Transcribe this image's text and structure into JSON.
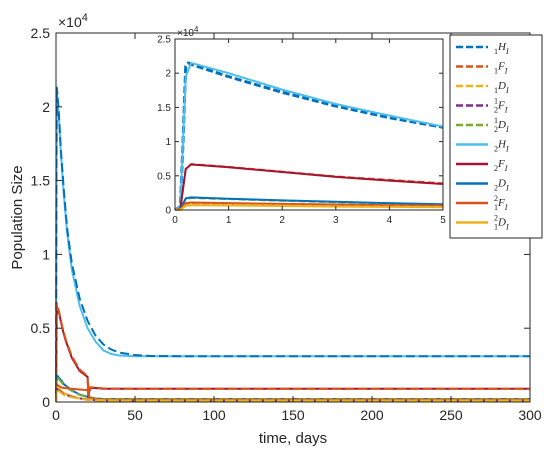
{
  "chart_data": [
    {
      "id": "main",
      "type": "line",
      "xlabel": "time, days",
      "ylabel": "Population Size",
      "y_exponent_label": "×10",
      "y_exponent_power": "4",
      "xlim": [
        0,
        300
      ],
      "ylim": [
        0,
        25000
      ],
      "xticks": [
        0,
        50,
        100,
        150,
        200,
        250,
        300
      ],
      "xtick_labels": [
        "0",
        "50",
        "100",
        "150",
        "200",
        "250",
        "300"
      ],
      "yticks": [
        0,
        5000,
        10000,
        15000,
        20000,
        25000
      ],
      "ytick_labels": [
        "0",
        "0.5",
        "1",
        "1.5",
        "2",
        "2.5"
      ],
      "grid": false,
      "series": [
        {
          "color": "#4DBEEE",
          "dash": false,
          "width": 2,
          "x": [
            0,
            0.3,
            0.5,
            1,
            2,
            3,
            5,
            7,
            10,
            15,
            20,
            25,
            30,
            35,
            40,
            50,
            60,
            80,
            100,
            150,
            200,
            250,
            300
          ],
          "y": [
            0,
            15000,
            21000,
            20500,
            19000,
            17000,
            14000,
            11500,
            9000,
            6500,
            5000,
            4100,
            3500,
            3250,
            3150,
            3100,
            3100,
            3100,
            3100,
            3100,
            3100,
            3100,
            3100
          ]
        },
        {
          "color": "#0072BD",
          "dash": true,
          "width": 2,
          "x": [
            0,
            0.3,
            0.5,
            1,
            2,
            3,
            5,
            7,
            10,
            15,
            20,
            25,
            30,
            35,
            40,
            50,
            60,
            80,
            100,
            150,
            200,
            250,
            300
          ],
          "y": [
            0,
            15500,
            21300,
            20800,
            19200,
            17200,
            14300,
            11800,
            9400,
            7000,
            5500,
            4500,
            3900,
            3550,
            3350,
            3180,
            3120,
            3100,
            3100,
            3100,
            3100,
            3100,
            3100
          ]
        },
        {
          "color": "#A2142F",
          "dash": false,
          "width": 2,
          "x": [
            0,
            0.5,
            1,
            2,
            4,
            6,
            10,
            15,
            20,
            20.5,
            21,
            22,
            25,
            30,
            50,
            100,
            150,
            200,
            250,
            300
          ],
          "y": [
            0,
            6500,
            6300,
            6000,
            5000,
            4200,
            3000,
            2100,
            1700,
            200,
            700,
            950,
            950,
            900,
            900,
            900,
            900,
            900,
            900,
            900
          ]
        },
        {
          "color": "#D95319",
          "dash": true,
          "width": 2,
          "x": [
            0,
            0.5,
            1,
            2,
            4,
            6,
            10,
            15,
            20,
            20.5,
            21,
            22,
            25,
            30,
            50,
            100,
            150,
            200,
            250,
            300
          ],
          "y": [
            0,
            6700,
            6500,
            6100,
            5100,
            4300,
            3100,
            2200,
            1750,
            250,
            750,
            1000,
            980,
            920,
            900,
            900,
            900,
            900,
            900,
            900
          ]
        },
        {
          "color": "#0072BD",
          "dash": false,
          "width": 2,
          "x": [
            0,
            0.5,
            1,
            3,
            5,
            10,
            15,
            20,
            25,
            30,
            50,
            100,
            150,
            200,
            250,
            300
          ],
          "y": [
            0,
            1800,
            1750,
            1500,
            1200,
            800,
            500,
            350,
            250,
            200,
            200,
            200,
            200,
            200,
            200,
            200
          ]
        },
        {
          "color": "#77AC30",
          "dash": true,
          "width": 2,
          "x": [
            0,
            0.5,
            1,
            3,
            5,
            10,
            15,
            20,
            25,
            30,
            50,
            100,
            150,
            200,
            250,
            300
          ],
          "y": [
            0,
            1700,
            1650,
            1400,
            1100,
            750,
            480,
            330,
            240,
            200,
            200,
            200,
            200,
            200,
            200,
            200
          ]
        },
        {
          "color": "#D95319",
          "dash": false,
          "width": 2,
          "x": [
            0,
            0.5,
            1,
            3,
            5,
            10,
            15,
            20,
            20.5,
            21,
            25,
            30,
            50,
            100,
            150,
            200,
            250,
            300
          ],
          "y": [
            0,
            1200,
            1150,
            1000,
            950,
            900,
            850,
            800,
            1200,
            300,
            200,
            150,
            150,
            150,
            150,
            150,
            150,
            150
          ]
        },
        {
          "color": "#EDB120",
          "dash": false,
          "width": 2,
          "x": [
            0,
            0.5,
            1,
            3,
            5,
            10,
            15,
            20,
            25,
            30,
            50,
            100,
            150,
            200,
            250,
            300
          ],
          "y": [
            0,
            1000,
            950,
            800,
            600,
            400,
            250,
            180,
            150,
            120,
            100,
            100,
            100,
            100,
            100,
            100
          ]
        },
        {
          "color": "#7E2F8E",
          "dash": true,
          "width": 2,
          "x": [
            0,
            0.5,
            1,
            3,
            5,
            10,
            20,
            30,
            50,
            100,
            200,
            300
          ],
          "y": [
            0,
            900,
            850,
            700,
            520,
            350,
            150,
            100,
            100,
            100,
            100,
            100
          ]
        },
        {
          "color": "#EDB120",
          "dash": true,
          "width": 2,
          "x": [
            0,
            0.5,
            1,
            3,
            5,
            10,
            20,
            30,
            50,
            100,
            200,
            300
          ],
          "y": [
            0,
            800,
            780,
            650,
            480,
            320,
            140,
            100,
            100,
            100,
            100,
            100
          ]
        }
      ]
    },
    {
      "id": "inset",
      "type": "line",
      "y_exponent_label": "×10",
      "y_exponent_power": "4",
      "xlim": [
        0,
        5
      ],
      "ylim": [
        0,
        25000
      ],
      "xticks": [
        0,
        1,
        2,
        3,
        4,
        5
      ],
      "xtick_labels": [
        "0",
        "1",
        "2",
        "3",
        "4",
        "5"
      ],
      "yticks": [
        0,
        5000,
        10000,
        15000,
        20000,
        25000
      ],
      "ytick_labels": [
        "0",
        "0.5",
        "1",
        "1.5",
        "2",
        "2.5"
      ],
      "grid": false,
      "legend": {
        "location": "top-right",
        "entries": [
          {
            "label": "₁H_I",
            "color": "#0072BD",
            "dash": true
          },
          {
            "label": "₁F_I",
            "color": "#D95319",
            "dash": true
          },
          {
            "label": "₁D_I",
            "color": "#EDB120",
            "dash": true
          },
          {
            "label": "¹₂F_I",
            "color": "#7E2F8E",
            "dash": true
          },
          {
            "label": "¹₂D_I",
            "color": "#77AC30",
            "dash": true
          },
          {
            "label": "₂H_I",
            "color": "#4DBEEE",
            "dash": false
          },
          {
            "label": "₂F_I",
            "color": "#A2142F",
            "dash": false
          },
          {
            "label": "₂D_I",
            "color": "#0072BD",
            "dash": false
          },
          {
            "label": "²₁F_I",
            "color": "#D95319",
            "dash": false
          },
          {
            "label": "²₁D_I",
            "color": "#EDB120",
            "dash": false
          }
        ]
      },
      "series": [
        {
          "color": "#0072BD",
          "dash": true,
          "width": 3,
          "x": [
            0,
            0.1,
            0.15,
            0.2,
            0.25,
            0.3,
            1,
            2,
            3,
            4,
            5
          ],
          "y": [
            0,
            500,
            10000,
            21000,
            21500,
            21300,
            19500,
            17200,
            15200,
            13500,
            12100
          ]
        },
        {
          "color": "#4DBEEE",
          "dash": false,
          "width": 2,
          "x": [
            0,
            0.1,
            0.2,
            0.3,
            0.4,
            1,
            2,
            3,
            4,
            5
          ],
          "y": [
            0,
            500,
            19500,
            21500,
            21300,
            20000,
            17600,
            15500,
            13800,
            12200
          ]
        },
        {
          "color": "#D95319",
          "dash": true,
          "width": 2,
          "x": [
            0,
            0.1,
            0.2,
            0.3,
            0.5,
            1,
            2,
            3,
            4,
            5
          ],
          "y": [
            0,
            200,
            6000,
            6700,
            6600,
            6300,
            5600,
            4900,
            4400,
            3900
          ]
        },
        {
          "color": "#A2142F",
          "dash": false,
          "width": 2,
          "x": [
            0,
            0.1,
            0.2,
            0.3,
            0.5,
            1,
            2,
            3,
            4,
            5
          ],
          "y": [
            0,
            200,
            6000,
            6650,
            6550,
            6250,
            5550,
            4850,
            4300,
            3800
          ]
        },
        {
          "color": "#77AC30",
          "dash": true,
          "width": 2,
          "x": [
            0,
            0.1,
            0.2,
            0.3,
            1,
            2,
            3,
            4,
            5
          ],
          "y": [
            0,
            100,
            1600,
            1750,
            1600,
            1350,
            1150,
            950,
            800
          ]
        },
        {
          "color": "#0072BD",
          "dash": false,
          "width": 2,
          "x": [
            0,
            0.1,
            0.2,
            0.3,
            1,
            2,
            3,
            4,
            5
          ],
          "y": [
            0,
            100,
            1700,
            1850,
            1650,
            1400,
            1200,
            1000,
            850
          ]
        },
        {
          "color": "#7E2F8E",
          "dash": true,
          "width": 2,
          "x": [
            0,
            0.1,
            0.2,
            0.3,
            1,
            2,
            3,
            4,
            5
          ],
          "y": [
            0,
            50,
            900,
            1000,
            950,
            850,
            750,
            650,
            600
          ]
        },
        {
          "color": "#D95319",
          "dash": false,
          "width": 2,
          "x": [
            0,
            0.1,
            0.2,
            0.3,
            1,
            2,
            3,
            4,
            5
          ],
          "y": [
            0,
            50,
            1000,
            1100,
            1000,
            900,
            800,
            700,
            650
          ]
        },
        {
          "color": "#EDB120",
          "dash": true,
          "width": 2,
          "x": [
            0,
            0.1,
            0.2,
            0.3,
            1,
            2,
            3,
            4,
            5
          ],
          "y": [
            0,
            50,
            700,
            800,
            750,
            650,
            550,
            500,
            450
          ]
        },
        {
          "color": "#EDB120",
          "dash": false,
          "width": 2,
          "x": [
            0,
            0.1,
            0.2,
            0.3,
            1,
            2,
            3,
            4,
            5
          ],
          "y": [
            0,
            50,
            600,
            700,
            650,
            580,
            500,
            450,
            400
          ]
        }
      ]
    }
  ]
}
